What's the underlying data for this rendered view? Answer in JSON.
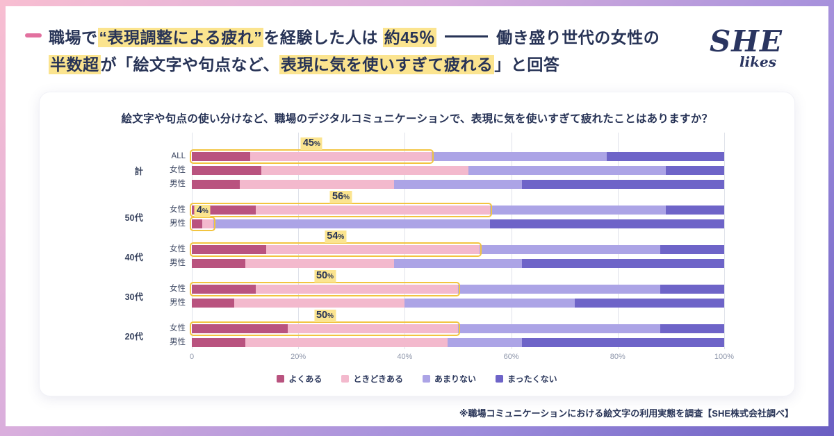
{
  "colors": {
    "navy": "#273356",
    "highlight_yellow": "#fbe48f",
    "box_yellow": "#f2c440",
    "accent_pink": "#e2719f",
    "grid": "#dfe2ea",
    "tick": "#8e96aa"
  },
  "header": {
    "title_lines": [
      {
        "segments": [
          {
            "t": "職場で",
            "h": false
          },
          {
            "t": "“表現調整による疲れ”",
            "h": true
          },
          {
            "t": "を経験した人は ",
            "h": false
          },
          {
            "t": "約45％",
            "h": true
          },
          {
            "type": "dash"
          },
          {
            "t": "働き盛り世代の女性の",
            "h": false
          }
        ]
      },
      {
        "segments": [
          {
            "t": "半数超",
            "h": true
          },
          {
            "t": "が「絵文字や句点など、",
            "h": false
          },
          {
            "t": "表現に気を使いすぎて疲れる",
            "h": true
          },
          {
            "t": "」と回答",
            "h": false
          }
        ]
      }
    ],
    "logo": {
      "main": "SHE",
      "sub": "likes"
    }
  },
  "chart_data": {
    "type": "bar",
    "orientation": "horizontal",
    "stacked": true,
    "title": "絵文字や句点の使い分けなど、職場のデジタルコミュニケーションで、表現に気を使いすぎて疲れたことはありますか？",
    "xlim": [
      0,
      100
    ],
    "x_ticks": [
      "0",
      "20%",
      "40%",
      "60%",
      "80%",
      "100%"
    ],
    "grid": true,
    "legend_position": "bottom",
    "percent_suffix": "%",
    "legend": [
      {
        "name": "よくある",
        "color": "#b9537f"
      },
      {
        "name": "ときどきある",
        "color": "#f3b9cd"
      },
      {
        "name": "あまりない",
        "color": "#aca4e6"
      },
      {
        "name": "まったくない",
        "color": "#6e64c8"
      }
    ],
    "groups": [
      {
        "label": "計",
        "rows": [
          {
            "label": "ALL",
            "values": [
              11,
              34,
              33,
              22
            ],
            "highlight": {
              "label": "45",
              "to": 45
            }
          },
          {
            "label": "女性",
            "values": [
              13,
              39,
              37,
              11
            ]
          },
          {
            "label": "男性",
            "values": [
              9,
              29,
              24,
              38
            ]
          }
        ]
      },
      {
        "label": "50代",
        "rows": [
          {
            "label": "女性",
            "values": [
              12,
              44,
              33,
              11
            ],
            "highlight": {
              "label": "56",
              "to": 56
            }
          },
          {
            "label": "男性",
            "values": [
              2,
              2,
              52,
              44
            ],
            "highlight": {
              "label": "4",
              "to": 4
            }
          }
        ]
      },
      {
        "label": "40代",
        "rows": [
          {
            "label": "女性",
            "values": [
              14,
              40,
              34,
              12
            ],
            "highlight": {
              "label": "54",
              "to": 54
            }
          },
          {
            "label": "男性",
            "values": [
              10,
              28,
              24,
              38
            ]
          }
        ]
      },
      {
        "label": "30代",
        "rows": [
          {
            "label": "女性",
            "values": [
              12,
              38,
              38,
              12
            ],
            "highlight": {
              "label": "50",
              "to": 50
            }
          },
          {
            "label": "男性",
            "values": [
              8,
              32,
              32,
              28
            ]
          }
        ]
      },
      {
        "label": "20代",
        "rows": [
          {
            "label": "女性",
            "values": [
              18,
              32,
              38,
              12
            ],
            "highlight": {
              "label": "50",
              "to": 50
            }
          },
          {
            "label": "男性",
            "values": [
              10,
              38,
              14,
              38
            ]
          }
        ]
      }
    ]
  },
  "footnote": "※職場コミュニケーションにおける絵文字の利用実態を調査【SHE株式会社調べ】"
}
